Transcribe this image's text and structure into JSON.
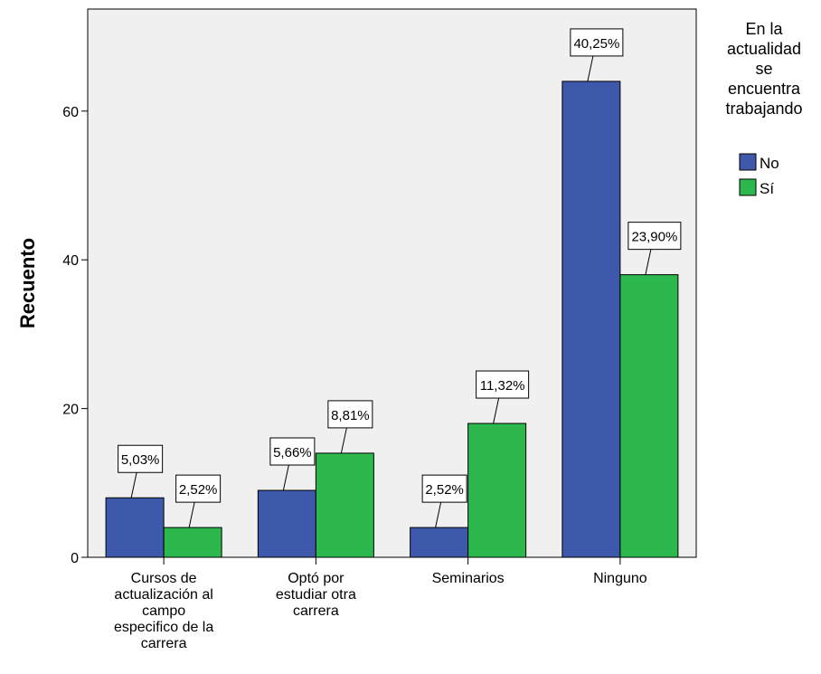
{
  "chart_data": {
    "type": "bar",
    "title": "",
    "xlabel": "",
    "ylabel": "Recuento",
    "ylim": [
      0,
      72
    ],
    "yticks": [
      0,
      20,
      40,
      60
    ],
    "grid": false,
    "legend_position": "right",
    "legend_title": "En la actualidad se encuentra trabajando",
    "legend_title_lines": [
      "En la",
      "actualidad",
      "se",
      "encuentra",
      "trabajando"
    ],
    "categories": [
      "Cursos de actualización al campo especifico de la carrera",
      "Optó por estudiar otra carrera",
      "Seminarios",
      "Ninguno"
    ],
    "category_label_lines": [
      [
        "Cursos de",
        "actualización al",
        "campo",
        "especifico de la",
        "carrera"
      ],
      [
        "Optó por",
        "estudiar otra",
        "carrera"
      ],
      [
        "Seminarios"
      ],
      [
        "Ninguno"
      ]
    ],
    "series": [
      {
        "name": "No",
        "color": "#3e58ac",
        "values": [
          8,
          9,
          4,
          64
        ],
        "labels": [
          "5,03%",
          "5,66%",
          "2,52%",
          "40,25%"
        ]
      },
      {
        "name": "Sí",
        "color": "#2db84e",
        "values": [
          4,
          14,
          18,
          38
        ],
        "labels": [
          "2,52%",
          "8,81%",
          "11,32%",
          "23,90%"
        ]
      }
    ],
    "plot_background": "#f0f0f0"
  }
}
